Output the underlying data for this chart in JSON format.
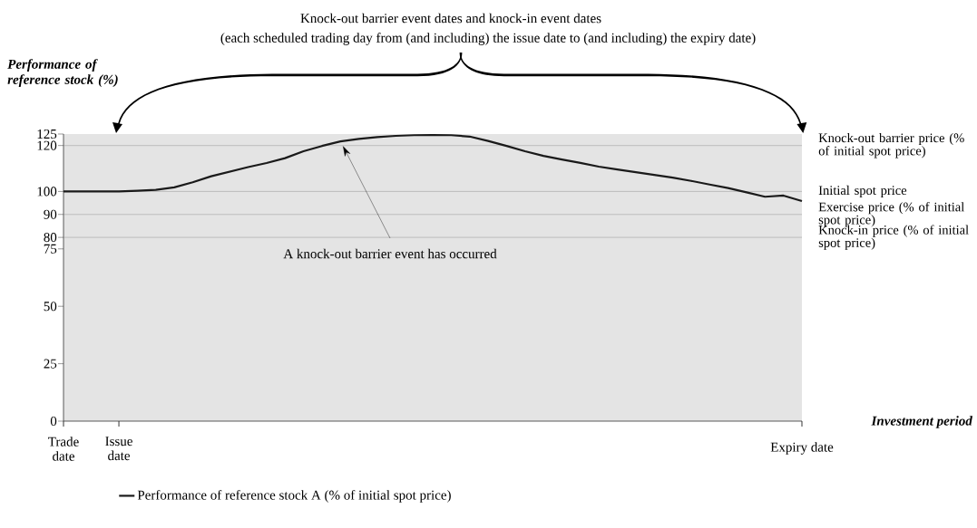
{
  "chart_data": {
    "type": "line",
    "title": "Knock-out barrier event dates and knock-in event dates",
    "subtitle": "(each scheduled trading day from (and including) the issue date to (and including) the expiry date)",
    "ylabel": "Performance of reference stock (%)",
    "xlabel": "Investment period",
    "categories": [
      "Trade date",
      null,
      null,
      "Issue date",
      null,
      null,
      null,
      null,
      null,
      null,
      null,
      null,
      null,
      null,
      null,
      null,
      null,
      null,
      null,
      null,
      null,
      null,
      null,
      null,
      null,
      null,
      null,
      null,
      null,
      null,
      null,
      null,
      null,
      null,
      null,
      null,
      null,
      null,
      null,
      null,
      "Expiry date"
    ],
    "series": [
      {
        "name": "Performance of reference stock A (% of initial spot price)",
        "color": "#1a1a1a",
        "values": [
          100,
          100,
          100,
          100,
          100.3,
          100.7,
          101.8,
          104,
          106.6,
          108.6,
          110.6,
          112.4,
          114.5,
          117.5,
          119.8,
          121.8,
          122.9,
          123.7,
          124.2,
          124.5,
          124.6,
          124.5,
          123.9,
          122,
          119.8,
          117.5,
          115.5,
          113.9,
          112.4,
          110.8,
          109.6,
          108.4,
          107.2,
          106,
          104.6,
          103,
          101.5,
          99.6,
          97.7,
          98.2,
          95.8
        ]
      }
    ],
    "ylim": [
      0,
      125
    ],
    "yticks": [
      0,
      25,
      50,
      75,
      80,
      90,
      100,
      120,
      125
    ],
    "ref_lines": [
      {
        "axis": "y",
        "value": 120,
        "label": "Knock-out barrier price (% of initial spot price)",
        "color": "#808080"
      },
      {
        "axis": "y",
        "value": 100,
        "label": "Initial spot price",
        "color": "#808080"
      },
      {
        "axis": "y",
        "value": 90,
        "label": "Exercise price (% of initial spot price)",
        "color": "#808080"
      },
      {
        "axis": "y",
        "value": 80,
        "label": "Knock-in price (% of initial spot price)",
        "color": "#808080"
      }
    ],
    "annotations": [
      "A knock-out barrier event has occurred"
    ],
    "legend": "bottom",
    "line_style": "solid",
    "marker": "none"
  }
}
